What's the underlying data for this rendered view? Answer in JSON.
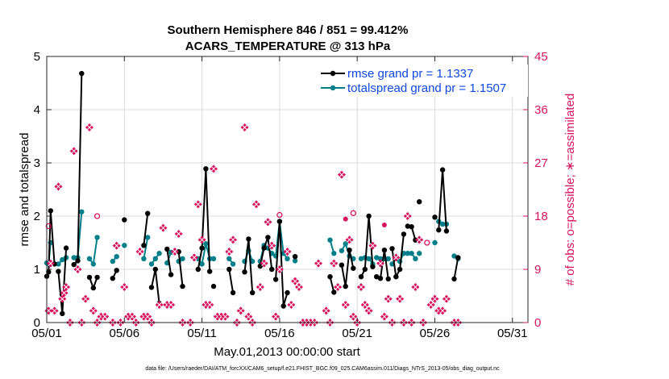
{
  "chart_data": {
    "type": "line",
    "title_line1": "Southern Hemisphere 846 / 851 = 99.412%",
    "title_line2": "ACARS_TEMPERATURE @ 313 hPa",
    "xlabel": "May.01,2013 00:00:00 start",
    "ylabel": "rmse and totalspread",
    "y2label": "# of obs: o=possible; ∗=assimilated",
    "footer": "data file: /Users/raeder/DAI/ATM_forcXX/CAM6_setup/f.e21.FHIST_BGC.f09_025.CAM6assim.011/Diags_NTrS_2013-05/obs_diag_output.nc",
    "xlim": [
      1,
      32
    ],
    "ylim": [
      0,
      5
    ],
    "y2lim": [
      0,
      45
    ],
    "xticks": [
      1,
      6,
      11,
      16,
      21,
      26,
      31
    ],
    "xtick_labels": [
      "05/01",
      "05/06",
      "05/11",
      "05/16",
      "05/21",
      "05/26",
      "05/31"
    ],
    "yticks": [
      "0",
      "1",
      "2",
      "3",
      "4",
      "5"
    ],
    "y2ticks": [
      "0",
      "9",
      "18",
      "27",
      "36",
      "45"
    ],
    "colors": {
      "rmse": "#000000",
      "spread": "#007f8a",
      "obs": "#d6135f",
      "legend_text": "#1048e0"
    },
    "series": [
      {
        "name": "rmse grand pr = 1.1337",
        "segments": [
          [
            [
              1.0,
              0.87
            ],
            [
              1.12,
              0.95
            ],
            [
              1.25,
              2.1
            ],
            [
              1.5,
              1.1
            ]
          ],
          [
            [
              1.75,
              0.96
            ],
            [
              2.0,
              0.17
            ],
            [
              2.25,
              1.4
            ]
          ],
          [
            [
              2.75,
              1.09
            ],
            [
              3.0,
              1.16
            ],
            [
              3.25,
              4.68
            ]
          ],
          [
            [
              3.75,
              0.85
            ],
            [
              4.0,
              0.65
            ],
            [
              4.25,
              0.85
            ]
          ],
          [
            [
              5.25,
              0.83
            ],
            [
              5.5,
              0.98
            ]
          ],
          [
            [
              6.0,
              1.93
            ]
          ],
          [
            [
              7.25,
              1.45
            ],
            [
              7.5,
              2.05
            ]
          ],
          [
            [
              7.75,
              0.66
            ],
            [
              8.0,
              1.0
            ],
            [
              8.25,
              0.36
            ]
          ],
          [
            [
              8.75,
              1.38
            ],
            [
              9.0,
              0.9
            ]
          ],
          [
            [
              9.5,
              1.33
            ],
            [
              9.75,
              0.68
            ]
          ],
          [
            [
              10.75,
              1.0
            ],
            [
              11.0,
              1.4
            ],
            [
              11.25,
              2.89
            ],
            [
              11.5,
              0.96
            ]
          ],
          [
            [
              11.75,
              0.68
            ]
          ],
          [
            [
              12.75,
              1.0
            ],
            [
              13.0,
              0.56
            ]
          ],
          [
            [
              13.75,
              0.95
            ],
            [
              14.0,
              1.57
            ],
            [
              14.25,
              0.56
            ]
          ],
          [
            [
              14.75,
              1.06
            ],
            [
              15.0,
              1.4
            ],
            [
              15.25,
              1.6
            ],
            [
              15.5,
              1.0
            ]
          ],
          [
            [
              15.75,
              0.81
            ],
            [
              16.0,
              1.9
            ],
            [
              16.25,
              0.31
            ],
            [
              16.5,
              0.56
            ]
          ],
          [
            [
              17.0,
              1.24
            ]
          ],
          [
            [
              19.25,
              0.86
            ],
            [
              19.5,
              0.57
            ]
          ],
          [
            [
              20.0,
              1.08
            ],
            [
              20.25,
              0.68
            ],
            [
              20.5,
              1.36
            ],
            [
              20.75,
              1.02
            ]
          ],
          [
            [
              21.25,
              0.86
            ],
            [
              21.5,
              1.0
            ],
            [
              21.75,
              2.0
            ],
            [
              22.0,
              1.05
            ]
          ],
          [
            [
              22.25,
              0.86
            ],
            [
              22.5,
              0.83
            ],
            [
              22.75,
              1.36
            ],
            [
              23.0,
              0.82
            ]
          ],
          [
            [
              23.25,
              1.39
            ],
            [
              23.5,
              0.86
            ],
            [
              23.75,
              1.0
            ],
            [
              24.0,
              1.66
            ]
          ],
          [
            [
              24.25,
              1.81
            ],
            [
              24.5,
              1.8
            ],
            [
              24.75,
              1.55
            ]
          ],
          [
            [
              25.0,
              2.27
            ]
          ],
          [
            [
              26.0,
              1.98
            ]
          ],
          [
            [
              26.25,
              1.74
            ],
            [
              26.5,
              2.87
            ],
            [
              26.75,
              1.72
            ]
          ],
          [
            [
              27.25,
              0.82
            ],
            [
              27.5,
              1.22
            ]
          ]
        ]
      },
      {
        "name": "totalspread grand pr = 1.1507",
        "segments": [
          [
            [
              1.0,
              1.12
            ],
            [
              1.12,
              1.1
            ],
            [
              1.25,
              1.5
            ]
          ],
          [
            [
              1.75,
              1.1
            ],
            [
              2.0,
              1.18
            ],
            [
              2.25,
              1.22
            ]
          ],
          [
            [
              2.75,
              1.22
            ],
            [
              3.0,
              1.22
            ],
            [
              3.25,
              2.08
            ]
          ],
          [
            [
              3.75,
              1.2
            ],
            [
              4.0,
              1.1
            ],
            [
              4.25,
              1.6
            ]
          ],
          [
            [
              5.25,
              1.15
            ],
            [
              5.5,
              1.24
            ]
          ],
          [
            [
              6.0,
              1.45
            ]
          ],
          [
            [
              7.25,
              1.2
            ],
            [
              7.5,
              1.6
            ]
          ],
          [
            [
              7.75,
              1.1
            ],
            [
              8.0,
              1.2
            ],
            [
              8.25,
              1.3
            ]
          ],
          [
            [
              8.75,
              1.12
            ],
            [
              9.0,
              1.32
            ]
          ],
          [
            [
              9.5,
              1.15
            ],
            [
              9.75,
              1.2
            ]
          ],
          [
            [
              10.75,
              1.2
            ],
            [
              11.0,
              1.1
            ],
            [
              11.25,
              1.48
            ],
            [
              11.5,
              1.2
            ]
          ],
          [
            [
              11.75,
              1.2
            ]
          ],
          [
            [
              12.75,
              1.2
            ],
            [
              13.0,
              1.1
            ]
          ],
          [
            [
              13.75,
              1.15
            ],
            [
              14.0,
              1.35
            ],
            [
              14.25,
              1.15
            ]
          ],
          [
            [
              14.75,
              1.15
            ],
            [
              15.0,
              1.45
            ],
            [
              15.25,
              1.4
            ],
            [
              15.5,
              1.3
            ]
          ],
          [
            [
              15.75,
              1.25
            ],
            [
              16.0,
              1.9
            ],
            [
              16.25,
              1.3
            ],
            [
              16.5,
              1.2
            ]
          ],
          [
            [
              17.0,
              1.16
            ]
          ],
          [
            [
              19.25,
              1.55
            ],
            [
              19.5,
              1.3
            ]
          ],
          [
            [
              20.0,
              1.35
            ],
            [
              20.25,
              1.48
            ],
            [
              20.5,
              1.25
            ],
            [
              20.75,
              1.2
            ]
          ],
          [
            [
              21.25,
              1.2
            ],
            [
              21.5,
              1.22
            ],
            [
              21.75,
              1.2
            ],
            [
              22.0,
              1.1
            ]
          ],
          [
            [
              22.25,
              1.22
            ],
            [
              22.5,
              1.2
            ],
            [
              22.75,
              1.2
            ],
            [
              23.0,
              1.2
            ]
          ],
          [
            [
              23.25,
              1.1
            ],
            [
              23.5,
              1.2
            ],
            [
              23.75,
              1.15
            ],
            [
              24.0,
              1.3
            ]
          ],
          [
            [
              24.25,
              1.3
            ],
            [
              24.5,
              1.3
            ],
            [
              24.75,
              1.2
            ]
          ],
          [
            [
              25.0,
              1.3
            ]
          ],
          [
            [
              26.0,
              1.5
            ]
          ],
          [
            [
              26.25,
              1.9
            ],
            [
              26.5,
              1.85
            ],
            [
              26.75,
              1.85
            ]
          ],
          [
            [
              27.25,
              1.25
            ],
            [
              27.5,
              1.2
            ]
          ]
        ]
      }
    ],
    "obs_assimilated": [
      [
        1.12,
        2
      ],
      [
        1.25,
        10
      ],
      [
        1.5,
        2
      ],
      [
        1.75,
        23
      ],
      [
        2.0,
        4
      ],
      [
        2.12,
        5
      ],
      [
        2.25,
        6
      ],
      [
        2.5,
        0
      ],
      [
        2.75,
        29
      ],
      [
        3.0,
        9
      ],
      [
        3.25,
        0
      ],
      [
        3.5,
        4
      ],
      [
        3.75,
        33
      ],
      [
        4.0,
        2
      ],
      [
        4.25,
        0
      ],
      [
        4.5,
        1
      ],
      [
        4.75,
        1
      ],
      [
        5.25,
        0
      ],
      [
        5.5,
        13
      ],
      [
        5.75,
        0
      ],
      [
        6.0,
        6
      ],
      [
        6.25,
        1
      ],
      [
        6.5,
        1
      ],
      [
        6.75,
        0
      ],
      [
        7.0,
        12
      ],
      [
        7.25,
        1
      ],
      [
        7.5,
        1
      ],
      [
        7.75,
        0
      ],
      [
        8.25,
        3
      ],
      [
        8.5,
        16
      ],
      [
        8.75,
        3
      ],
      [
        9.0,
        3
      ],
      [
        9.25,
        12
      ],
      [
        9.5,
        15
      ],
      [
        9.75,
        0
      ],
      [
        10.25,
        0
      ],
      [
        10.5,
        11
      ],
      [
        10.75,
        20
      ],
      [
        11.0,
        14
      ],
      [
        11.25,
        3
      ],
      [
        11.5,
        3
      ],
      [
        11.75,
        26
      ],
      [
        12.0,
        1
      ],
      [
        12.25,
        1
      ],
      [
        12.5,
        1
      ],
      [
        12.75,
        12
      ],
      [
        13.0,
        14
      ],
      [
        13.25,
        0
      ],
      [
        13.5,
        2
      ],
      [
        13.75,
        33
      ],
      [
        14.0,
        1
      ],
      [
        14.25,
        0
      ],
      [
        14.5,
        20
      ],
      [
        14.75,
        6
      ],
      [
        15.0,
        10
      ],
      [
        15.25,
        17
      ],
      [
        15.5,
        13
      ],
      [
        15.75,
        1
      ],
      [
        16.0,
        9
      ],
      [
        16.5,
        12
      ],
      [
        16.75,
        3
      ],
      [
        17.0,
        7
      ],
      [
        17.25,
        6
      ],
      [
        17.5,
        0
      ],
      [
        17.75,
        0
      ],
      [
        18.0,
        0
      ],
      [
        18.25,
        0
      ],
      [
        18.5,
        10
      ],
      [
        18.75,
        42
      ],
      [
        19.0,
        2
      ],
      [
        19.25,
        0
      ],
      [
        19.5,
        10
      ],
      [
        19.75,
        6
      ],
      [
        20.0,
        25
      ],
      [
        20.25,
        3
      ],
      [
        20.5,
        14
      ],
      [
        20.75,
        1
      ],
      [
        21.0,
        0
      ],
      [
        21.25,
        6
      ],
      [
        21.5,
        3
      ],
      [
        21.75,
        2
      ],
      [
        22.0,
        13
      ],
      [
        22.25,
        39
      ],
      [
        22.5,
        10
      ],
      [
        22.75,
        1
      ],
      [
        23.0,
        4
      ],
      [
        23.25,
        0
      ],
      [
        23.5,
        11
      ],
      [
        23.75,
        4
      ],
      [
        24.0,
        0
      ],
      [
        24.25,
        18
      ],
      [
        24.5,
        0
      ],
      [
        24.75,
        6
      ],
      [
        25.0,
        14
      ],
      [
        25.25,
        0
      ],
      [
        25.75,
        3
      ],
      [
        26.0,
        4
      ],
      [
        26.25,
        2
      ],
      [
        26.5,
        2
      ],
      [
        26.75,
        4
      ],
      [
        27.25,
        0
      ],
      [
        27.5,
        0
      ]
    ],
    "obs_possible_open": [
      [
        1.12,
        16.3
      ],
      [
        4.25,
        18
      ],
      [
        16.0,
        18.2
      ],
      [
        20.75,
        18.5
      ],
      [
        25.5,
        13.5
      ]
    ],
    "obs_possible_filled": [
      [
        20.25,
        17.5
      ],
      [
        22.75,
        16.5
      ]
    ]
  }
}
